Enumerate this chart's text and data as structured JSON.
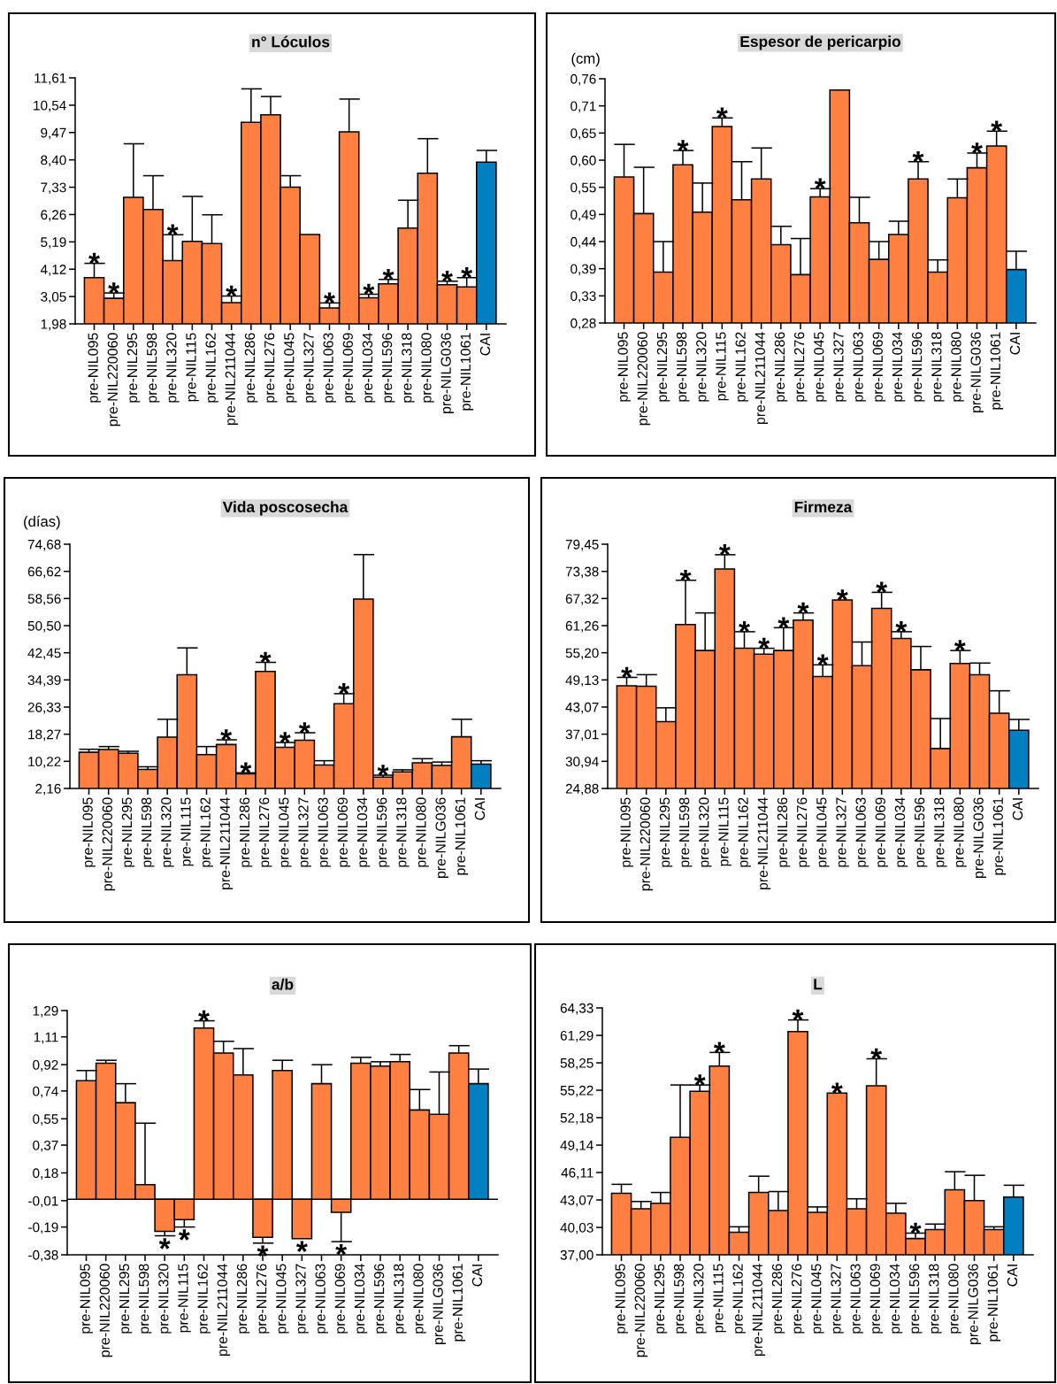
{
  "chart_data": [
    {
      "type": "bar",
      "title": "n° Lóculos",
      "categories": [
        "pre-NIL095",
        "pre-NIL220060",
        "pre-NIL295",
        "pre-NIL598",
        "pre-NIL320",
        "pre-NIL115",
        "pre-NIL162",
        "pre-NIL211044",
        "pre-NIL286",
        "pre-NIL276",
        "pre-NIL045",
        "pre-NIL327",
        "pre-NIL063",
        "pre-NIL069",
        "pre-NIL034",
        "pre-NIL596",
        "pre-NIL318",
        "pre-NIL080",
        "pre-NILG036",
        "pre-NIL1061",
        "CAI"
      ],
      "values": [
        3.79,
        2.98,
        6.93,
        6.46,
        4.46,
        5.21,
        5.12,
        2.81,
        9.87,
        10.16,
        7.33,
        5.48,
        2.6,
        9.5,
        3.0,
        3.55,
        5.73,
        7.88,
        3.51,
        3.43,
        8.31
      ],
      "errors": [
        [
          3.79,
          4.35
        ],
        [
          2.98,
          3.19
        ],
        [
          6.93,
          9.03
        ],
        [
          6.46,
          7.78
        ],
        [
          4.46,
          5.47
        ],
        [
          5.21,
          6.97
        ],
        [
          5.12,
          6.25
        ],
        [
          2.81,
          3.07
        ],
        [
          9.87,
          11.18
        ],
        [
          10.16,
          10.88
        ],
        [
          7.33,
          7.78
        ],
        null,
        [
          2.6,
          2.8
        ],
        [
          9.5,
          10.78
        ],
        [
          3.0,
          3.14
        ],
        [
          3.55,
          3.72
        ],
        [
          5.73,
          6.82
        ],
        [
          7.88,
          9.23
        ],
        [
          3.51,
          3.65
        ],
        [
          3.43,
          3.79
        ],
        [
          8.31,
          8.77
        ]
      ],
      "colors": [
        "#ff8040",
        "#ff8040",
        "#ff8040",
        "#ff8040",
        "#ff8040",
        "#ff8040",
        "#ff8040",
        "#ff8040",
        "#ff8040",
        "#ff8040",
        "#ff8040",
        "#ff8040",
        "#ff8040",
        "#ff8040",
        "#ff8040",
        "#ff8040",
        "#ff8040",
        "#ff8040",
        "#ff8040",
        "#ff8040",
        "#0080c0"
      ],
      "ylim": [
        1.98,
        11.61
      ],
      "yticks": [
        {
          "value": 1.98,
          "label": "1,98"
        },
        {
          "value": 3.05,
          "label": "3,05"
        },
        {
          "value": 4.12,
          "label": "4,12"
        },
        {
          "value": 5.19,
          "label": "5,19"
        },
        {
          "value": 6.26,
          "label": "6,26"
        },
        {
          "value": 7.33,
          "label": "7,33"
        },
        {
          "value": 8.4,
          "label": "8,40"
        },
        {
          "value": 9.47,
          "label": "9,47"
        },
        {
          "value": 10.54,
          "label": "10,54"
        },
        {
          "value": 11.61,
          "label": "11,61"
        }
      ],
      "annotations": [
        {
          "text": "*",
          "x": "pre-NIL095",
          "y": 4.35
        },
        {
          "text": "*",
          "x": "pre-NIL220060",
          "y": 3.19
        },
        {
          "text": "*",
          "x": "pre-NIL320",
          "y": 5.47
        },
        {
          "text": "*",
          "x": "pre-NIL211044",
          "y": 3.07
        },
        {
          "text": "*",
          "x": "pre-NIL063",
          "y": 2.8
        },
        {
          "text": "*",
          "x": "pre-NIL034",
          "y": 3.14
        },
        {
          "text": "*",
          "x": "pre-NIL596",
          "y": 3.72
        },
        {
          "text": "*",
          "x": "pre-NILG036",
          "y": 3.65
        },
        {
          "text": "*",
          "x": "pre-NIL1061",
          "y": 3.79
        }
      ]
    },
    {
      "type": "bar",
      "title": "Espesor de pericarpio",
      "ylabel": "(cm)",
      "categories": [
        "pre-NIL095",
        "pre-NIL220060",
        "pre-NIL295",
        "pre-NIL598",
        "pre-NIL320",
        "pre-NIL115",
        "pre-NIL162",
        "pre-NIL211044",
        "pre-NIL286",
        "pre-NIL276",
        "pre-NIL045",
        "pre-NIL327",
        "pre-NIL063",
        "pre-NIL069",
        "pre-NIL034",
        "pre-NIL596",
        "pre-NIL318",
        "pre-NIL080",
        "pre-NILG036",
        "pre-NIL1061",
        "CAI"
      ],
      "values": [
        0.567,
        0.495,
        0.38,
        0.591,
        0.498,
        0.666,
        0.522,
        0.563,
        0.434,
        0.375,
        0.528,
        0.738,
        0.477,
        0.405,
        0.454,
        0.563,
        0.38,
        0.526,
        0.585,
        0.628,
        0.385
      ],
      "errors": [
        [
          0.567,
          0.631
        ],
        [
          0.495,
          0.586
        ],
        [
          0.38,
          0.44
        ],
        [
          0.591,
          0.619
        ],
        [
          0.498,
          0.555
        ],
        [
          0.666,
          0.683
        ],
        [
          0.522,
          0.597
        ],
        [
          0.563,
          0.624
        ],
        [
          0.434,
          0.47
        ],
        [
          0.375,
          0.446
        ],
        [
          0.528,
          0.544
        ],
        null,
        [
          0.477,
          0.527
        ],
        [
          0.405,
          0.44
        ],
        [
          0.454,
          0.48
        ],
        [
          0.563,
          0.597
        ],
        [
          0.38,
          0.404
        ],
        [
          0.526,
          0.563
        ],
        [
          0.585,
          0.614
        ],
        [
          0.628,
          0.657
        ],
        [
          0.385,
          0.421
        ]
      ],
      "colors": [
        "#ff8040",
        "#ff8040",
        "#ff8040",
        "#ff8040",
        "#ff8040",
        "#ff8040",
        "#ff8040",
        "#ff8040",
        "#ff8040",
        "#ff8040",
        "#ff8040",
        "#ff8040",
        "#ff8040",
        "#ff8040",
        "#ff8040",
        "#ff8040",
        "#ff8040",
        "#ff8040",
        "#ff8040",
        "#ff8040",
        "#0080c0"
      ],
      "ylim": [
        0.28,
        0.76
      ],
      "yticks": [
        {
          "value": 0.28,
          "label": "0,28"
        },
        {
          "value": 0.3333,
          "label": "0,33"
        },
        {
          "value": 0.3867,
          "label": "0,39"
        },
        {
          "value": 0.44,
          "label": "0,44"
        },
        {
          "value": 0.4933,
          "label": "0,49"
        },
        {
          "value": 0.5467,
          "label": "0,55"
        },
        {
          "value": 0.6,
          "label": "0,60"
        },
        {
          "value": 0.6533,
          "label": "0,65"
        },
        {
          "value": 0.7067,
          "label": "0,71"
        },
        {
          "value": 0.76,
          "label": "0,76"
        }
      ],
      "annotations": [
        {
          "text": "*",
          "x": "pre-NIL598",
          "y": 0.619
        },
        {
          "text": "*",
          "x": "pre-NIL115",
          "y": 0.683
        },
        {
          "text": "*",
          "x": "pre-NIL045",
          "y": 0.544
        },
        {
          "text": "*",
          "x": "pre-NIL596",
          "y": 0.597
        },
        {
          "text": "*",
          "x": "pre-NILG036",
          "y": 0.614
        },
        {
          "text": "*",
          "x": "pre-NIL1061",
          "y": 0.657
        }
      ]
    },
    {
      "type": "bar",
      "title": "Vida poscosecha",
      "ylabel": "(días)",
      "categories": [
        "pre-NIL095",
        "pre-NIL220060",
        "pre-NIL295",
        "pre-NIL598",
        "pre-NIL320",
        "pre-NIL115",
        "pre-NIL162",
        "pre-NIL211044",
        "pre-NIL286",
        "pre-NIL276",
        "pre-NIL045",
        "pre-NIL327",
        "pre-NIL063",
        "pre-NIL069",
        "pre-NIL034",
        "pre-NIL596",
        "pre-NIL318",
        "pre-NIL080",
        "pre-NILG036",
        "pre-NIL1061",
        "CAI"
      ],
      "values": [
        12.9,
        13.7,
        12.6,
        7.8,
        17.4,
        35.9,
        12.2,
        15.2,
        6.5,
        36.9,
        14.4,
        16.5,
        9.1,
        27.3,
        58.4,
        5.5,
        7.1,
        9.8,
        9.0,
        17.5,
        9.4
      ],
      "errors": [
        [
          12.9,
          13.8
        ],
        [
          13.7,
          14.6
        ],
        [
          12.6,
          13.2
        ],
        [
          7.8,
          8.6
        ],
        [
          17.4,
          22.7
        ],
        [
          35.9,
          43.9
        ],
        [
          12.2,
          14.6
        ],
        [
          15.2,
          16.6
        ],
        [
          6.5,
          6.8
        ],
        [
          36.9,
          39.6
        ],
        [
          14.4,
          15.8
        ],
        [
          16.5,
          18.7
        ],
        [
          9.1,
          10.4
        ],
        [
          27.3,
          30.3
        ],
        [
          58.4,
          71.6
        ],
        [
          5.5,
          6.1
        ],
        [
          7.1,
          7.7
        ],
        [
          9.8,
          11.0
        ],
        [
          9.0,
          10.0
        ],
        [
          17.5,
          22.7
        ],
        [
          9.4,
          10.4
        ]
      ],
      "colors": [
        "#ff8040",
        "#ff8040",
        "#ff8040",
        "#ff8040",
        "#ff8040",
        "#ff8040",
        "#ff8040",
        "#ff8040",
        "#ff8040",
        "#ff8040",
        "#ff8040",
        "#ff8040",
        "#ff8040",
        "#ff8040",
        "#ff8040",
        "#ff8040",
        "#ff8040",
        "#ff8040",
        "#ff8040",
        "#ff8040",
        "#0080c0"
      ],
      "ylim": [
        2.16,
        74.68
      ],
      "yticks": [
        {
          "value": 2.16,
          "label": "2,16"
        },
        {
          "value": 10.22,
          "label": "10,22"
        },
        {
          "value": 18.27,
          "label": "18,27"
        },
        {
          "value": 26.33,
          "label": "26,33"
        },
        {
          "value": 34.39,
          "label": "34,39"
        },
        {
          "value": 42.45,
          "label": "42,45"
        },
        {
          "value": 50.5,
          "label": "50,50"
        },
        {
          "value": 58.56,
          "label": "58,56"
        },
        {
          "value": 66.62,
          "label": "66,62"
        },
        {
          "value": 74.68,
          "label": "74,68"
        }
      ],
      "annotations": [
        {
          "text": "*",
          "x": "pre-NIL211044",
          "y": 16.6
        },
        {
          "text": "*",
          "x": "pre-NIL286",
          "y": 6.8
        },
        {
          "text": "*",
          "x": "pre-NIL276",
          "y": 39.6
        },
        {
          "text": "*",
          "x": "pre-NIL045",
          "y": 15.8
        },
        {
          "text": "*",
          "x": "pre-NIL327",
          "y": 18.7
        },
        {
          "text": "*",
          "x": "pre-NIL069",
          "y": 30.3
        },
        {
          "text": "*",
          "x": "pre-NIL596",
          "y": 6.1
        }
      ]
    },
    {
      "type": "bar",
      "title": "Firmeza",
      "categories": [
        "pre-NIL095",
        "pre-NIL220060",
        "pre-NIL295",
        "pre-NIL598",
        "pre-NIL320",
        "pre-NIL115",
        "pre-NIL162",
        "pre-NIL211044",
        "pre-NIL286",
        "pre-NIL276",
        "pre-NIL045",
        "pre-NIL327",
        "pre-NIL063",
        "pre-NIL069",
        "pre-NIL034",
        "pre-NIL596",
        "pre-NIL318",
        "pre-NIL080",
        "pre-NILG036",
        "pre-NIL1061",
        "CAI"
      ],
      "values": [
        47.8,
        47.7,
        39.8,
        61.5,
        55.7,
        73.9,
        56.2,
        54.9,
        55.7,
        62.5,
        49.9,
        67.0,
        52.3,
        65.1,
        58.4,
        51.4,
        33.8,
        52.8,
        50.3,
        41.7,
        37.9
      ],
      "errors": [
        [
          47.8,
          49.7
        ],
        [
          47.7,
          50.3
        ],
        [
          39.8,
          42.9
        ],
        [
          61.5,
          71.4
        ],
        [
          55.7,
          64.1
        ],
        [
          73.9,
          77.1
        ],
        [
          56.2,
          59.9
        ],
        [
          54.9,
          56.2
        ],
        [
          55.7,
          60.8
        ],
        [
          62.5,
          64.1
        ],
        [
          49.9,
          52.5
        ],
        null,
        [
          52.3,
          57.6
        ],
        [
          65.1,
          68.7
        ],
        [
          58.4,
          59.9
        ],
        [
          51.4,
          56.6
        ],
        [
          33.8,
          40.5
        ],
        [
          52.8,
          55.7
        ],
        [
          50.3,
          52.9
        ],
        [
          41.7,
          46.7
        ],
        [
          37.9,
          40.3
        ]
      ],
      "colors": [
        "#ff8040",
        "#ff8040",
        "#ff8040",
        "#ff8040",
        "#ff8040",
        "#ff8040",
        "#ff8040",
        "#ff8040",
        "#ff8040",
        "#ff8040",
        "#ff8040",
        "#ff8040",
        "#ff8040",
        "#ff8040",
        "#ff8040",
        "#ff8040",
        "#ff8040",
        "#ff8040",
        "#ff8040",
        "#ff8040",
        "#0080c0"
      ],
      "ylim": [
        24.88,
        79.45
      ],
      "yticks": [
        {
          "value": 24.88,
          "label": "24,88"
        },
        {
          "value": 30.94,
          "label": "30,94"
        },
        {
          "value": 37.01,
          "label": "37,01"
        },
        {
          "value": 43.07,
          "label": "43,07"
        },
        {
          "value": 49.13,
          "label": "49,13"
        },
        {
          "value": 55.2,
          "label": "55,20"
        },
        {
          "value": 61.26,
          "label": "61,26"
        },
        {
          "value": 67.32,
          "label": "67,32"
        },
        {
          "value": 73.38,
          "label": "73,38"
        },
        {
          "value": 79.45,
          "label": "79,45"
        }
      ],
      "annotations": [
        {
          "text": "*",
          "x": "pre-NIL095",
          "y": 49.7
        },
        {
          "text": "*",
          "x": "pre-NIL598",
          "y": 71.4
        },
        {
          "text": "*",
          "x": "pre-NIL115",
          "y": 77.1
        },
        {
          "text": "*",
          "x": "pre-NIL162",
          "y": 59.9
        },
        {
          "text": "*",
          "x": "pre-NIL211044",
          "y": 56.2
        },
        {
          "text": "*",
          "x": "pre-NIL286",
          "y": 60.8
        },
        {
          "text": "*",
          "x": "pre-NIL276",
          "y": 64.1
        },
        {
          "text": "*",
          "x": "pre-NIL045",
          "y": 52.5
        },
        {
          "text": "*",
          "x": "pre-NIL327",
          "y": 67.0
        },
        {
          "text": "*",
          "x": "pre-NIL069",
          "y": 68.7
        },
        {
          "text": "*",
          "x": "pre-NIL034",
          "y": 59.9
        },
        {
          "text": "*",
          "x": "pre-NIL080",
          "y": 55.7
        }
      ]
    },
    {
      "type": "bar",
      "title": "a/b",
      "categories": [
        "pre-NIL095",
        "pre-NIL220060",
        "pre-NIL295",
        "pre-NIL598",
        "pre-NIL320",
        "pre-NIL115",
        "pre-NIL162",
        "pre-NIL211044",
        "pre-NIL286",
        "pre-NIL276",
        "pre-NIL045",
        "pre-NIL327",
        "pre-NIL063",
        "pre-NIL069",
        "pre-NIL034",
        "pre-NIL596",
        "pre-NIL318",
        "pre-NIL080",
        "pre-NILG036",
        "pre-NIL1061",
        "CAI"
      ],
      "values": [
        0.81,
        0.93,
        0.66,
        0.1,
        -0.22,
        -0.14,
        1.17,
        1.0,
        0.85,
        -0.26,
        0.88,
        -0.27,
        0.79,
        -0.09,
        0.93,
        0.91,
        0.94,
        0.61,
        0.58,
        1.0,
        0.79
      ],
      "errors": [
        [
          0.81,
          0.88
        ],
        [
          0.93,
          0.95
        ],
        [
          0.66,
          0.79
        ],
        [
          0.1,
          0.52
        ],
        [
          -0.25,
          -0.22
        ],
        [
          -0.19,
          -0.14
        ],
        [
          1.17,
          1.22
        ],
        [
          1.0,
          1.08
        ],
        [
          0.85,
          1.03
        ],
        [
          -0.3,
          -0.26
        ],
        [
          0.88,
          0.95
        ],
        null,
        [
          0.79,
          0.92
        ],
        [
          -0.29,
          -0.09
        ],
        [
          0.93,
          0.97
        ],
        [
          0.91,
          0.94
        ],
        [
          0.94,
          0.99
        ],
        [
          0.61,
          0.75
        ],
        [
          0.58,
          0.87
        ],
        [
          1.0,
          1.05
        ],
        [
          0.79,
          0.89
        ]
      ],
      "colors": [
        "#ff8040",
        "#ff8040",
        "#ff8040",
        "#ff8040",
        "#ff8040",
        "#ff8040",
        "#ff8040",
        "#ff8040",
        "#ff8040",
        "#ff8040",
        "#ff8040",
        "#ff8040",
        "#ff8040",
        "#ff8040",
        "#ff8040",
        "#ff8040",
        "#ff8040",
        "#ff8040",
        "#ff8040",
        "#ff8040",
        "#0080c0"
      ],
      "ylim": [
        -0.38,
        1.29
      ],
      "yticks": [
        {
          "value": -0.38,
          "label": "-0,38"
        },
        {
          "value": -0.19,
          "label": "-0,19"
        },
        {
          "value": -0.01,
          "label": "-0,01"
        },
        {
          "value": 0.18,
          "label": "0,18"
        },
        {
          "value": 0.37,
          "label": "0,37"
        },
        {
          "value": 0.55,
          "label": "0,55"
        },
        {
          "value": 0.74,
          "label": "0,74"
        },
        {
          "value": 0.92,
          "label": "0,92"
        },
        {
          "value": 1.11,
          "label": "1,11"
        },
        {
          "value": 1.29,
          "label": "1,29"
        }
      ],
      "ref_lines": [
        {
          "axis": "y",
          "value": 0,
          "color": "#000000"
        }
      ],
      "annotations": [
        {
          "text": "*",
          "x": "pre-NIL320",
          "y": -0.25
        },
        {
          "text": "*",
          "x": "pre-NIL115",
          "y": -0.19
        },
        {
          "text": "*",
          "x": "pre-NIL162",
          "y": 1.22
        },
        {
          "text": "*",
          "x": "pre-NIL276",
          "y": -0.3
        },
        {
          "text": "*",
          "x": "pre-NIL327",
          "y": -0.27
        },
        {
          "text": "*",
          "x": "pre-NIL069",
          "y": -0.29
        }
      ]
    },
    {
      "type": "bar",
      "title": "L",
      "categories": [
        "pre-NIL095",
        "pre-NIL220060",
        "pre-NIL295",
        "pre-NIL598",
        "pre-NIL320",
        "pre-NIL115",
        "pre-NIL162",
        "pre-NIL211044",
        "pre-NIL286",
        "pre-NIL276",
        "pre-NIL045",
        "pre-NIL327",
        "pre-NIL063",
        "pre-NIL069",
        "pre-NIL034",
        "pre-NIL596",
        "pre-NIL318",
        "pre-NIL080",
        "pre-NILG036",
        "pre-NIL1061",
        "CAI"
      ],
      "values": [
        43.8,
        42.1,
        42.7,
        50.0,
        55.1,
        57.9,
        39.5,
        43.9,
        41.9,
        61.7,
        41.7,
        54.9,
        42.1,
        55.7,
        41.6,
        38.8,
        39.8,
        44.2,
        43.0,
        39.8,
        43.4
      ],
      "errors": [
        [
          43.8,
          44.8
        ],
        [
          42.1,
          42.9
        ],
        [
          42.7,
          43.9
        ],
        [
          50.0,
          55.8
        ],
        [
          55.1,
          55.8
        ],
        [
          57.9,
          59.4
        ],
        [
          39.5,
          40.1
        ],
        [
          43.9,
          45.7
        ],
        [
          41.9,
          44.0
        ],
        [
          61.7,
          63.0
        ],
        [
          41.7,
          42.3
        ],
        null,
        [
          42.1,
          43.2
        ],
        [
          55.7,
          58.7
        ],
        [
          41.6,
          42.7
        ],
        [
          38.8,
          39.4
        ],
        [
          39.8,
          40.4
        ],
        [
          44.2,
          46.2
        ],
        [
          43.0,
          45.8
        ],
        [
          39.8,
          40.1
        ],
        [
          43.4,
          44.7
        ]
      ],
      "colors": [
        "#ff8040",
        "#ff8040",
        "#ff8040",
        "#ff8040",
        "#ff8040",
        "#ff8040",
        "#ff8040",
        "#ff8040",
        "#ff8040",
        "#ff8040",
        "#ff8040",
        "#ff8040",
        "#ff8040",
        "#ff8040",
        "#ff8040",
        "#ff8040",
        "#ff8040",
        "#ff8040",
        "#ff8040",
        "#ff8040",
        "#0080c0"
      ],
      "ylim": [
        37.0,
        64.33
      ],
      "yticks": [
        {
          "value": 37.0,
          "label": "37,00"
        },
        {
          "value": 40.03,
          "label": "40,03"
        },
        {
          "value": 43.07,
          "label": "43,07"
        },
        {
          "value": 46.11,
          "label": "46,11"
        },
        {
          "value": 49.14,
          "label": "49,14"
        },
        {
          "value": 52.18,
          "label": "52,18"
        },
        {
          "value": 55.22,
          "label": "55,22"
        },
        {
          "value": 58.25,
          "label": "58,25"
        },
        {
          "value": 61.29,
          "label": "61,29"
        },
        {
          "value": 64.33,
          "label": "64,33"
        }
      ],
      "annotations": [
        {
          "text": "*",
          "x": "pre-NIL320",
          "y": 55.8
        },
        {
          "text": "*",
          "x": "pre-NIL115",
          "y": 59.4
        },
        {
          "text": "*",
          "x": "pre-NIL276",
          "y": 63.0
        },
        {
          "text": "*",
          "x": "pre-NIL327",
          "y": 54.9
        },
        {
          "text": "*",
          "x": "pre-NIL069",
          "y": 58.7
        },
        {
          "text": "*",
          "x": "pre-NIL596",
          "y": 39.4
        }
      ]
    }
  ]
}
